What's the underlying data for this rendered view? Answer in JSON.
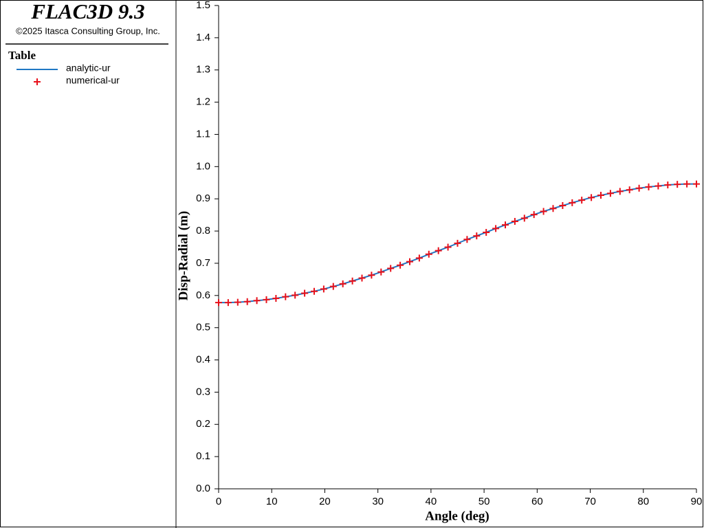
{
  "header": {
    "title": "FLAC3D 9.3",
    "copyright": "©2025 Itasca Consulting Group, Inc."
  },
  "chart_data": {
    "type": "line",
    "legend_title": "Table",
    "x_label": "Angle (deg)",
    "y_label": "Disp-Radial (m)",
    "x": [
      0,
      1.8,
      3.6,
      5.4,
      7.2,
      9,
      10.8,
      12.6,
      14.4,
      16.2,
      18,
      19.8,
      21.6,
      23.4,
      25.2,
      27,
      28.8,
      30.6,
      32.4,
      34.2,
      36,
      37.8,
      39.6,
      41.4,
      43.2,
      45,
      46.8,
      48.6,
      50.4,
      52.2,
      54,
      55.8,
      57.6,
      59.4,
      61.2,
      63,
      64.8,
      66.6,
      68.4,
      70.2,
      72,
      73.8,
      75.6,
      77.4,
      79.2,
      81,
      82.8,
      84.6,
      86.4,
      88.2,
      90
    ],
    "series": [
      {
        "name": "analytic-ur",
        "color": "#1f77c4",
        "mode": "line",
        "values": [
          0.578,
          0.578,
          0.579,
          0.581,
          0.584,
          0.587,
          0.591,
          0.596,
          0.601,
          0.607,
          0.613,
          0.62,
          0.628,
          0.636,
          0.645,
          0.654,
          0.663,
          0.673,
          0.684,
          0.694,
          0.705,
          0.716,
          0.728,
          0.739,
          0.75,
          0.762,
          0.774,
          0.785,
          0.796,
          0.808,
          0.819,
          0.83,
          0.84,
          0.851,
          0.861,
          0.87,
          0.879,
          0.888,
          0.896,
          0.904,
          0.911,
          0.917,
          0.923,
          0.928,
          0.933,
          0.937,
          0.94,
          0.943,
          0.945,
          0.946,
          0.946
        ]
      },
      {
        "name": "numerical-ur",
        "color": "#e8101a",
        "mode": "markers",
        "values": [
          0.578,
          0.578,
          0.579,
          0.581,
          0.584,
          0.587,
          0.591,
          0.596,
          0.601,
          0.607,
          0.613,
          0.62,
          0.628,
          0.636,
          0.645,
          0.654,
          0.663,
          0.673,
          0.684,
          0.694,
          0.705,
          0.716,
          0.728,
          0.739,
          0.75,
          0.762,
          0.774,
          0.785,
          0.796,
          0.808,
          0.819,
          0.83,
          0.84,
          0.851,
          0.861,
          0.87,
          0.879,
          0.888,
          0.896,
          0.904,
          0.911,
          0.917,
          0.923,
          0.928,
          0.933,
          0.937,
          0.94,
          0.943,
          0.945,
          0.946,
          0.946
        ]
      }
    ],
    "xlim": [
      0,
      90
    ],
    "xticks": [
      0,
      10,
      20,
      30,
      40,
      50,
      60,
      70,
      80,
      90
    ],
    "ylim": [
      0,
      1.5
    ],
    "yticks": [
      {
        "value": 0,
        "label": "0.0"
      },
      0.1,
      0.2,
      0.3,
      0.4,
      0.5,
      0.6,
      0.7,
      0.8,
      0.9,
      {
        "value": 1,
        "label": "1.0"
      },
      1.1,
      1.2,
      1.3,
      1.4,
      1.5
    ]
  }
}
